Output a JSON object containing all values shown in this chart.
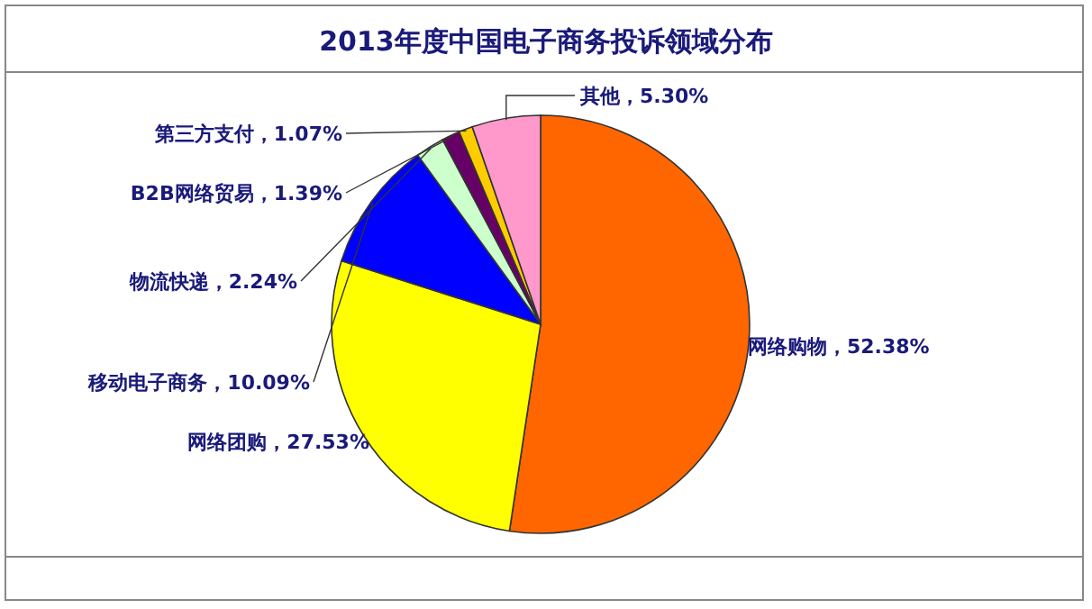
{
  "chart_data": {
    "type": "pie",
    "title": "2013年度中国电子商务投诉领域分布",
    "categories": [
      "网络购物",
      "网络团购",
      "移动电子商务",
      "物流快递",
      "B2B网络贸易",
      "第三方支付",
      "其他"
    ],
    "values": [
      52.38,
      27.53,
      10.09,
      2.24,
      1.39,
      1.07,
      5.3
    ],
    "colors": [
      "#ff6600",
      "#ffff00",
      "#0000ff",
      "#ccffcc",
      "#660066",
      "#ffcc00",
      "#ff99cc"
    ],
    "value_labels": [
      "52.38%",
      "27.53%",
      "10.09%",
      "2.24%",
      "1.39%",
      "1.07%",
      "5.30%"
    ]
  }
}
